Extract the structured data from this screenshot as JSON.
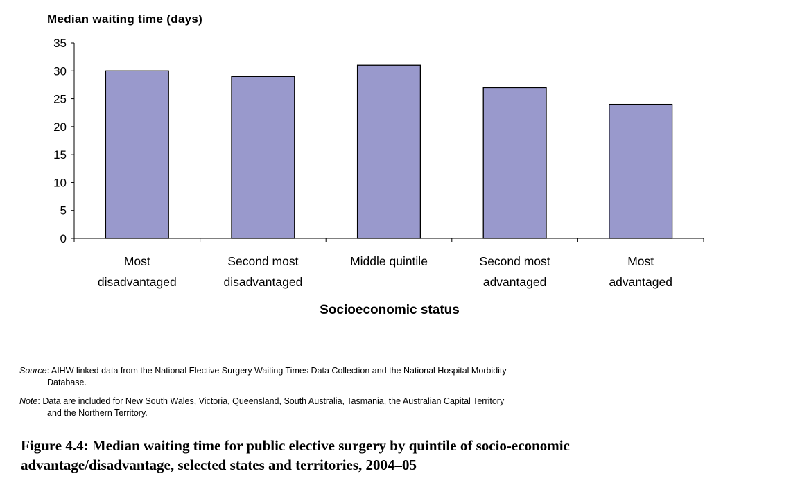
{
  "chart_data": {
    "type": "bar",
    "ylabel": "Median waiting time (days)",
    "xlabel": "Socioeconomic status",
    "categories": [
      [
        "Most",
        "disadvantaged"
      ],
      [
        "Second most",
        "disadvantaged"
      ],
      [
        "Middle quintile"
      ],
      [
        "Second most",
        "advantaged"
      ],
      [
        "Most",
        "advantaged"
      ]
    ],
    "values": [
      30,
      29,
      31,
      27,
      24
    ],
    "ylim": [
      0,
      35
    ],
    "yticks": [
      0,
      5,
      10,
      15,
      20,
      25,
      30,
      35
    ],
    "bar_color": "#9999cc",
    "grid": false,
    "legend": "none"
  },
  "source": {
    "label": "Source",
    "text": ": AIHW linked data from the National Elective Surgery Waiting Times Data Collection and the National Hospital Morbidity",
    "text2": "Database."
  },
  "note": {
    "label": "Note",
    "text": ": Data are included for New South Wales, Victoria, Queensland, South Australia, Tasmania, the Australian Capital Territory",
    "text2": "and the Northern Territory."
  },
  "caption": {
    "line1": "Figure 4.4: Median waiting time for public elective surgery by quintile of socio-economic",
    "line2": "advantage/disadvantage, selected states and territories, 2004–05"
  }
}
